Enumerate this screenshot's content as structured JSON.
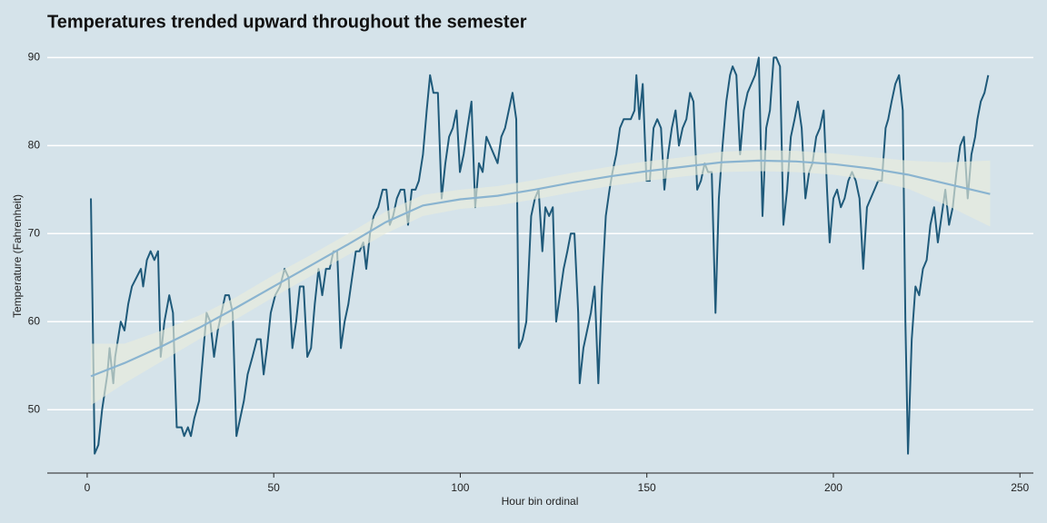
{
  "chart_data": {
    "type": "line",
    "title": "Temperatures trended upward throughout the semester",
    "x_label": "Hour bin ordinal",
    "y_label": "Temperature (Fahrenheit)",
    "xlim": [
      -10.7,
      253.6
    ],
    "ylim": [
      42.8,
      91.9
    ],
    "xticks": [
      0,
      50,
      100,
      150,
      200,
      250
    ],
    "yticks": [
      50,
      60,
      70,
      80,
      90
    ],
    "grid": true,
    "color": "#1f5a7a",
    "x": [
      1,
      1.5,
      2,
      3,
      4,
      5.4,
      6,
      7,
      7.5,
      9,
      10,
      11,
      12,
      14.4,
      15,
      16,
      17,
      18,
      19,
      19.7,
      20.7,
      22,
      23,
      24,
      25.3,
      26,
      27,
      27.8,
      28.7,
      30,
      31,
      32,
      33,
      34,
      35,
      36,
      37,
      38,
      39,
      40,
      41,
      42,
      43,
      44.3,
      45.5,
      46.5,
      47.3,
      48.2,
      49.2,
      50.4,
      51.7,
      52.9,
      54,
      55,
      56,
      57,
      58,
      59,
      60,
      61,
      62,
      63,
      64,
      65,
      66,
      67,
      68,
      69,
      70,
      71,
      72,
      73,
      74,
      74.8,
      75.8,
      76.8,
      78,
      79.2,
      80.2,
      81.1,
      82,
      83,
      84,
      85,
      86,
      87,
      88,
      88.9,
      90,
      91,
      91.9,
      92.8,
      94,
      95,
      96,
      97,
      98,
      99,
      99.9,
      100.9,
      101.9,
      103,
      104,
      105,
      106,
      107,
      108,
      109,
      110,
      111,
      112,
      113,
      114,
      115,
      115.7,
      116.7,
      117.7,
      119,
      120,
      121,
      122,
      122.8,
      123.8,
      124.8,
      125.7,
      126.7,
      127.7,
      128.7,
      129.6,
      130.6,
      131.6,
      132,
      133,
      134,
      135,
      136,
      137,
      138,
      139,
      140,
      140.8,
      141.8,
      142.8,
      143.8,
      144.7,
      145.7,
      146.7,
      147.2,
      148,
      148.9,
      149.9,
      150.8,
      151.8,
      152.8,
      153.8,
      154.7,
      155.7,
      156.7,
      157.7,
      158.6,
      159.6,
      160.6,
      161.6,
      162.5,
      163.5,
      164.5,
      165.5,
      166.4,
      167.4,
      168.4,
      169.3,
      170.3,
      171.3,
      172.3,
      173,
      174,
      175,
      176,
      177,
      178,
      179,
      180,
      181,
      182,
      183,
      184,
      184.7,
      185.7,
      186.6,
      187.6,
      188.6,
      189.6,
      190.5,
      191.5,
      192.5,
      193.5,
      194.4,
      195.4,
      196.4,
      197.4,
      198.3,
      199,
      200,
      201,
      202,
      203,
      204,
      205,
      206,
      207,
      208,
      209,
      210,
      211,
      212,
      213,
      214,
      214.7,
      215.6,
      216.6,
      217.6,
      218.6,
      219.3,
      220,
      221,
      222,
      223,
      224,
      225,
      226,
      227,
      228,
      229,
      230,
      231,
      232,
      233,
      234,
      235,
      236,
      237,
      238,
      238.6,
      239.5,
      240.5,
      241.5
    ],
    "values": [
      74,
      60,
      45,
      46,
      50,
      54,
      57,
      53,
      56,
      60,
      59,
      62,
      64,
      66,
      64,
      67,
      68,
      67,
      68,
      56,
      60,
      63,
      61,
      48,
      48,
      47,
      48,
      47,
      49,
      51,
      56,
      61,
      60,
      56,
      59,
      61,
      63,
      63,
      61,
      47,
      49,
      51,
      54,
      56,
      58,
      58,
      54,
      57,
      61,
      63,
      64,
      66,
      65,
      57,
      60,
      64,
      64,
      56,
      57,
      62,
      66,
      63,
      66,
      66,
      68,
      68,
      57,
      60,
      62,
      65,
      68,
      68,
      69,
      66,
      70,
      72,
      73,
      75,
      75,
      71,
      72,
      74,
      75,
      75,
      71,
      75,
      75,
      76,
      79,
      84,
      88,
      86,
      86,
      74,
      78,
      81,
      82,
      84,
      77,
      79,
      82,
      85,
      73,
      78,
      77,
      81,
      80,
      79,
      78,
      81,
      82,
      84,
      86,
      83,
      57,
      58,
      60,
      72,
      74,
      75,
      68,
      73,
      72,
      73,
      60,
      63,
      66,
      68,
      70,
      70,
      61,
      53,
      57,
      59,
      61,
      64,
      53,
      64,
      72,
      75,
      77,
      79,
      82,
      83,
      83,
      83,
      84,
      88,
      83,
      87,
      76,
      76,
      82,
      83,
      82,
      75,
      79,
      82,
      84,
      80,
      82,
      83,
      86,
      85,
      75,
      76,
      78,
      77,
      77,
      61,
      74,
      80,
      85,
      88,
      89,
      88,
      79,
      84,
      86,
      87,
      88,
      90,
      72,
      82,
      84,
      90,
      90,
      89,
      71,
      75,
      81,
      83,
      85,
      82,
      74,
      77,
      78,
      81,
      82,
      84,
      75,
      69,
      74,
      75,
      73,
      74,
      76,
      77,
      76,
      74,
      66,
      73,
      74,
      75,
      76,
      76,
      82,
      83,
      85,
      87,
      88,
      84,
      60,
      45,
      58,
      64,
      63,
      66,
      67,
      71,
      73,
      69,
      72,
      75,
      71,
      73,
      77,
      80,
      81,
      74,
      79,
      81,
      83,
      85,
      86,
      88
    ],
    "smooth": {
      "color": "#8ab4d0",
      "band_color": "#eaeddb",
      "x": [
        1,
        10,
        20,
        30,
        40,
        50,
        60,
        70,
        80,
        90,
        100,
        110,
        120,
        130,
        140,
        150,
        160,
        170,
        180,
        190,
        200,
        210,
        220,
        230,
        242
      ],
      "values": [
        53.8,
        55.3,
        57.2,
        59.3,
        61.6,
        64,
        66.4,
        68.8,
        71.3,
        73.2,
        73.9,
        74.3,
        75,
        75.8,
        76.5,
        77.1,
        77.6,
        78.1,
        78.3,
        78.2,
        77.9,
        77.4,
        76.7,
        75.7,
        74.5
      ],
      "lower": [
        50.5,
        53,
        55.5,
        58,
        60.3,
        62.8,
        65.2,
        67.6,
        70,
        72,
        72.8,
        73.2,
        73.9,
        74.7,
        75.4,
        76,
        76.5,
        77,
        77.1,
        77,
        76.7,
        76.1,
        75.1,
        73.3,
        70.8
      ],
      "upper": [
        57.5,
        57.5,
        59,
        60.7,
        62.8,
        65.3,
        67.6,
        70,
        72.5,
        74.4,
        75,
        75.4,
        76.1,
        76.9,
        77.6,
        78.2,
        78.7,
        79.3,
        79.5,
        79.4,
        79.1,
        78.7,
        78.3,
        78.1,
        78.3
      ]
    }
  }
}
